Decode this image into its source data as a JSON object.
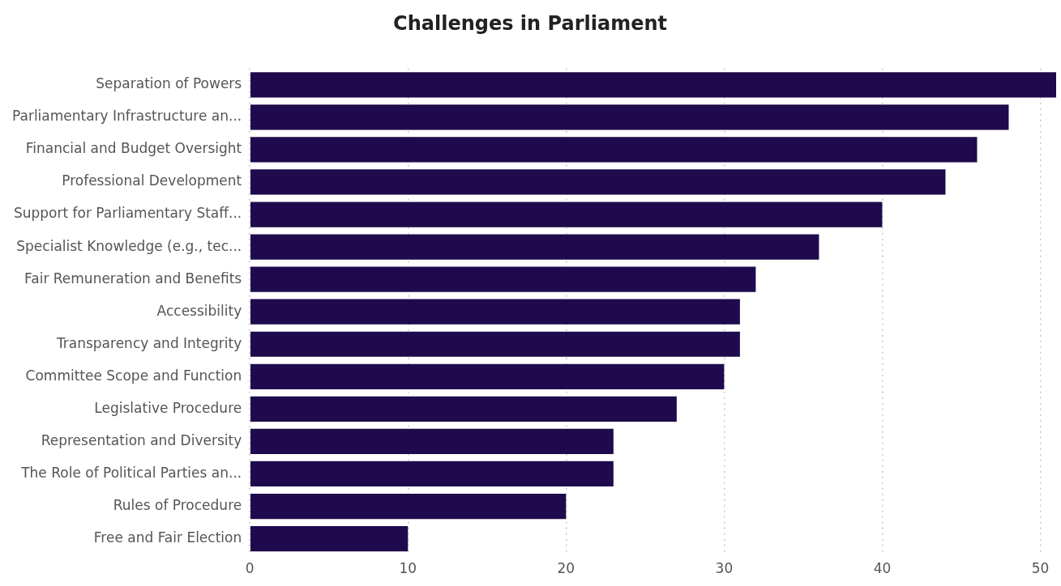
{
  "chart_data": {
    "type": "bar",
    "title": "Challenges in Parliament",
    "orientation": "horizontal",
    "categories": [
      "Separation of Powers",
      "Parliamentary Infrastructure an...",
      "Financial and Budget Oversight",
      "Professional Development",
      "Support for Parliamentary Staff...",
      "Specialist Knowledge (e.g., tec...",
      "Fair Remuneration and Benefits",
      "Accessibility",
      "Transparency and Integrity",
      "Committee Scope and Function",
      "Legislative Procedure",
      "Representation and Diversity",
      "The Role of Political Parties an...",
      "Rules of Procedure",
      "Free and Fair Election"
    ],
    "values": [
      51,
      48,
      46,
      44,
      40,
      36,
      32,
      31,
      31,
      30,
      27,
      23,
      23,
      20,
      10
    ],
    "color": "#1e0a4c",
    "xlim": [
      0,
      51
    ],
    "xticks": [
      0,
      10,
      20,
      30,
      40,
      50
    ],
    "grid": "x"
  }
}
